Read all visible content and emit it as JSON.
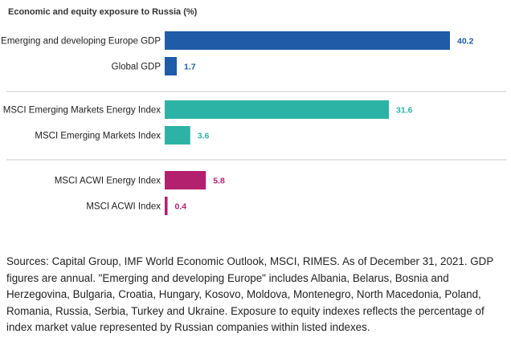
{
  "chart_data": {
    "type": "bar",
    "orientation": "horizontal",
    "title": "Economic and equity exposure to Russia (%)",
    "xlabel": "",
    "ylabel": "",
    "xlim": [
      0,
      40.2
    ],
    "grid": false,
    "legend": "none",
    "groups": [
      {
        "color": "#1f5ba6",
        "bars": [
          {
            "category": "Emerging and developing Europe GDP",
            "value": 40.2,
            "label": "40.2"
          },
          {
            "category": "Global GDP",
            "value": 1.7,
            "label": "1.7"
          }
        ]
      },
      {
        "color": "#2db3a5",
        "bars": [
          {
            "category": "MSCI Emerging Markets Energy Index",
            "value": 31.6,
            "label": "31.6"
          },
          {
            "category": "MSCI Emerging Markets Index",
            "value": 3.6,
            "label": "3.6"
          }
        ]
      },
      {
        "color": "#b3206e",
        "bars": [
          {
            "category": "MSCI ACWI Energy Index",
            "value": 5.8,
            "label": "5.8"
          },
          {
            "category": "MSCI ACWI Index",
            "value": 0.4,
            "label": "0.4"
          }
        ]
      }
    ]
  },
  "sources_text": "Sources: Capital Group, IMF World Economic Outlook, MSCI, RIMES. As of December 31, 2021. GDP figures are annual. \"Emerging and developing Europe\" includes Albania, Belarus, Bosnia and Herzegovina, Bulgaria, Croatia, Hungary, Kosovo, Moldova, Montenegro, North Macedonia, Poland, Romania, Russia, Serbia, Turkey and Ukraine. Exposure to equity indexes reflects the percentage of index market value represented by Russian companies within listed indexes."
}
